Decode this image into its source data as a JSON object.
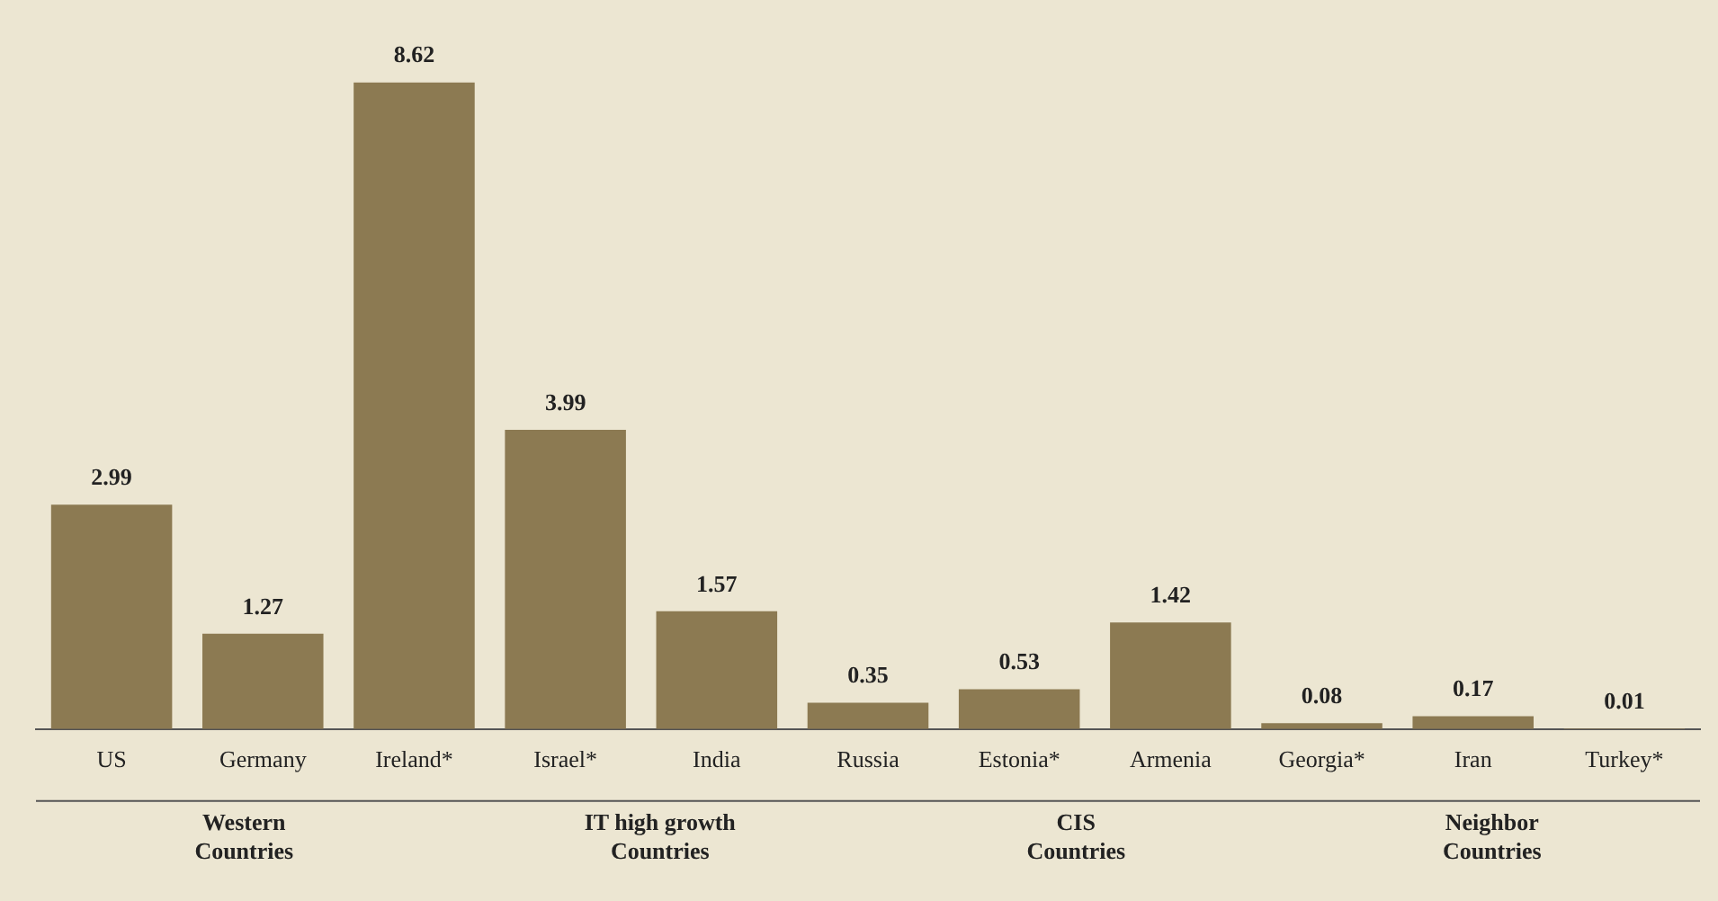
{
  "chart_data": {
    "type": "bar",
    "categories": [
      "US",
      "Germany",
      "Ireland*",
      "Israel*",
      "India",
      "Russia",
      "Estonia*",
      "Armenia",
      "Georgia*",
      "Iran",
      "Turkey*"
    ],
    "values": [
      2.99,
      1.27,
      8.62,
      3.99,
      1.57,
      0.35,
      0.53,
      1.42,
      0.08,
      0.17,
      0.01
    ],
    "color": "#8c7a52",
    "data_labels": true,
    "grid": false,
    "legend": false,
    "annotations": [
      "Western Countries",
      "IT high growth Countries",
      "CIS Countries",
      "Neighbor Countries"
    ]
  }
}
